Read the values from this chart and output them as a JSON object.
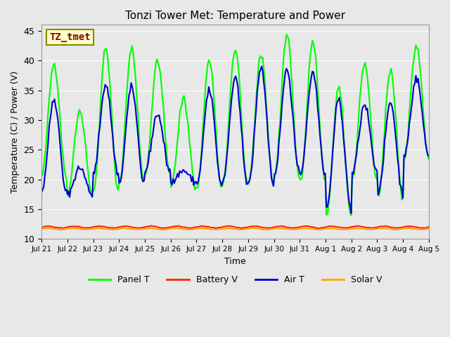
{
  "title": "Tonzi Tower Met: Temperature and Power",
  "xlabel": "Time",
  "ylabel": "Temperature (C) / Power (V)",
  "ylim": [
    10,
    46
  ],
  "yticks": [
    10,
    15,
    20,
    25,
    30,
    35,
    40,
    45
  ],
  "annotation_text": "TZ_tmet",
  "annotation_color": "#8B0000",
  "annotation_bg": "#FFFFCC",
  "annotation_border": "#8B8B00",
  "bg_color": "#E8E8E8",
  "colors": {
    "panel_t": "#00FF00",
    "battery_v": "#FF2200",
    "air_t": "#0000CC",
    "solar_v": "#FFA500"
  },
  "line_widths": {
    "panel_t": 1.5,
    "battery_v": 1.5,
    "air_t": 1.5,
    "solar_v": 1.5
  },
  "x_tick_labels": [
    "Jul 21",
    "Jul 22",
    "Jul 23",
    "Jul 24",
    "Jul 25",
    "Jul 26",
    "Jul 27",
    "Jul 28",
    "Jul 29",
    "Jul 30",
    "Jul 31",
    "Aug 1",
    "Aug 2",
    "Aug 3",
    "Aug 4",
    "Aug 5"
  ],
  "days": 15,
  "n_points": 360,
  "panel_t_peaks": [
    39.5,
    31.5,
    42.0,
    42.0,
    40.0,
    33.5,
    40.0,
    42.0,
    41.0,
    44.5,
    43.0,
    35.5,
    39.5,
    38.5,
    42.5
  ],
  "panel_t_mins": [
    20.5,
    17.5,
    18.0,
    19.5,
    21.0,
    19.0,
    18.5,
    19.5,
    19.5,
    20.5,
    20.0,
    14.0,
    20.0,
    17.0,
    23.5
  ],
  "air_t_peaks": [
    33.5,
    22.0,
    36.0,
    35.5,
    31.0,
    21.5,
    35.0,
    37.0,
    38.5,
    38.5,
    38.0,
    33.5,
    32.5,
    33.0,
    37.0
  ],
  "air_t_mins": [
    18.0,
    17.5,
    21.0,
    19.5,
    21.5,
    19.5,
    19.0,
    19.5,
    19.5,
    21.0,
    21.0,
    15.0,
    21.0,
    17.5,
    24.0
  ],
  "battery_v_base": 12.0,
  "battery_v_amp": 0.15,
  "solar_v_base": 11.7,
  "solar_v_amp": 0.1,
  "legend_labels": [
    "Panel T",
    "Battery V",
    "Air T",
    "Solar V"
  ]
}
